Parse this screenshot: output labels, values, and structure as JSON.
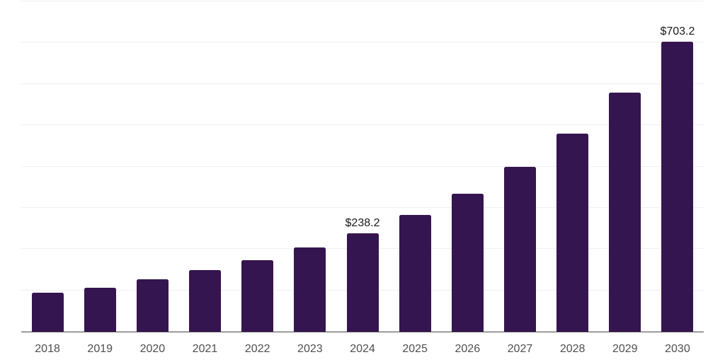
{
  "chart_data": {
    "type": "bar",
    "title": "",
    "xlabel": "",
    "ylabel": "",
    "categories": [
      "2018",
      "2019",
      "2020",
      "2021",
      "2022",
      "2023",
      "2024",
      "2025",
      "2026",
      "2027",
      "2028",
      "2029",
      "2030"
    ],
    "values": [
      93.4,
      106.4,
      126.9,
      149.5,
      173.4,
      203.5,
      238.2,
      282.3,
      334.6,
      399.8,
      480.5,
      579.8,
      703.2
    ],
    "data_labels": {
      "2024": "$238.2",
      "2030": "$703.2"
    },
    "ylim": [
      0,
      800
    ],
    "grid_interval": 100,
    "grid": true,
    "legend": false,
    "y_tick_labels_visible": false,
    "colors": {
      "bar": "#35154f",
      "gridline": "#f0f0f3",
      "axis_line": "#444444",
      "tick_label": "#4f4f4f",
      "data_label": "#191919",
      "background": "#ffffff"
    }
  }
}
